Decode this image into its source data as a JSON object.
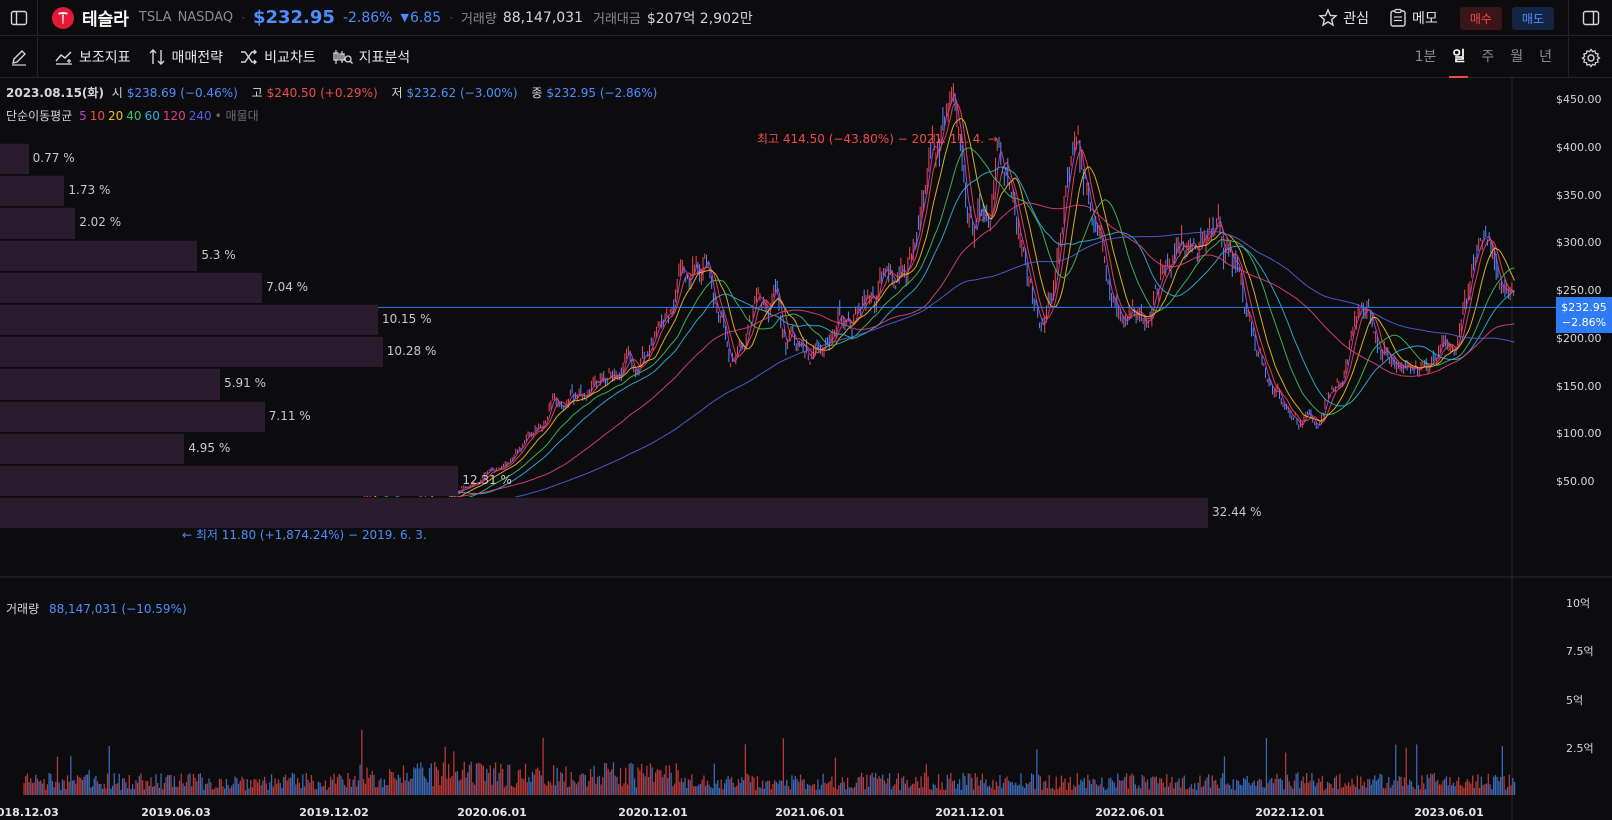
{
  "header": {
    "name": "테슬라",
    "symbol": "TSLA",
    "exchange": "NASDAQ",
    "price": "$232.95",
    "change_pct": "-2.86%",
    "change_abs": "6.85",
    "volume_label": "거래량",
    "volume": "88,147,031",
    "turnover_label": "거래대금",
    "turnover": "$207억 2,902만",
    "watch_label": "관심",
    "memo_label": "메모",
    "buy_label": "매수",
    "sell_label": "매도"
  },
  "toolbar": {
    "tools": [
      "보조지표",
      "매매전략",
      "비교차트",
      "지표분석"
    ],
    "timeframes": [
      "1분",
      "일",
      "주",
      "월",
      "년"
    ],
    "active_timeframe": "일"
  },
  "ohlc": {
    "date": "2023.08.15(화)",
    "open_label": "시",
    "open": "$238.69 (−0.46%)",
    "high_label": "고",
    "high": "$240.50 (+0.29%)",
    "low_label": "저",
    "low": "$232.62 (−3.00%)",
    "close_label": "종",
    "close": "$232.95 (−2.86%)"
  },
  "moving_average": {
    "label": "단순이동평균",
    "periods": [
      "5",
      "10",
      "20",
      "40",
      "60",
      "120",
      "240"
    ],
    "colors": [
      "#c040d0",
      "#ef4a4a",
      "#f0c020",
      "#40c060",
      "#30b0e0",
      "#e04080",
      "#5060e0"
    ],
    "band_label": "매물대"
  },
  "annotations": {
    "high": "최고 414.50 (−43.80%) − 2021. 11. 4. →",
    "low": "← 최저 11.80 (+1,874.24%) − 2019. 6. 3."
  },
  "volume_panel": {
    "label": "거래량",
    "value": "88,147,031 (−10.59%)"
  },
  "current_price_tag": {
    "price": "$232.95",
    "change": "−2.86%"
  },
  "colors": {
    "up": "#ef4a4a",
    "down": "#4d8dff",
    "accent": "#2e7bf5",
    "volume_profile": "#2a1c2e"
  },
  "chart_data": {
    "type": "candlestick",
    "y_axis_ticks": [
      "$450.00",
      "$400.00",
      "$350.00",
      "$300.00",
      "$250.00",
      "$200.00",
      "$150.00",
      "$100.00",
      "$50.00"
    ],
    "ylim": [
      0,
      460
    ],
    "volume_axis_ticks": [
      "10억",
      "7.5억",
      "5억",
      "2.5억"
    ],
    "x_axis_ticks": [
      "2018.12.03",
      "2019.06.03",
      "2019.12.02",
      "2020.06.01",
      "2020.12.01",
      "2021.06.01",
      "2021.12.01",
      "2022.06.01",
      "2022.12.01",
      "2023.06.01"
    ],
    "volume_profile": {
      "labels": [
        "0.77 %",
        "1.73 %",
        "2.02 %",
        "5.3 %",
        "7.04 %",
        "10.15 %",
        "10.28 %",
        "5.91 %",
        "7.11 %",
        "4.95 %",
        "12.31 %",
        "32.44 %"
      ],
      "values": [
        0.77,
        1.73,
        2.02,
        5.3,
        7.04,
        10.15,
        10.28,
        5.91,
        7.11,
        4.95,
        12.31,
        32.44
      ]
    },
    "price_path": {
      "x": [
        "2018.12.03",
        "2019.06.03",
        "2019.12.02",
        "2020.02.18",
        "2020.03.18",
        "2020.06.01",
        "2020.09.01",
        "2020.12.01",
        "2021.01.26",
        "2021.03.08",
        "2021.04.14",
        "2021.05.20",
        "2021.09.01",
        "2021.11.04",
        "2021.12.20",
        "2022.01.04",
        "2022.02.24",
        "2022.04.04",
        "2022.05.24",
        "2022.08.16",
        "2022.12.27",
        "2023.01.25",
        "2023.02.15",
        "2023.04.25",
        "2023.06.01",
        "2023.07.18",
        "2023.08.15"
      ],
      "close": [
        23,
        12,
        22,
        55,
        25,
        60,
        140,
        190,
        295,
        190,
        250,
        190,
        250,
        414,
        310,
        380,
        220,
        380,
        210,
        310,
        110,
        160,
        215,
        160,
        185,
        290,
        233
      ]
    },
    "current_price": 232.95
  }
}
